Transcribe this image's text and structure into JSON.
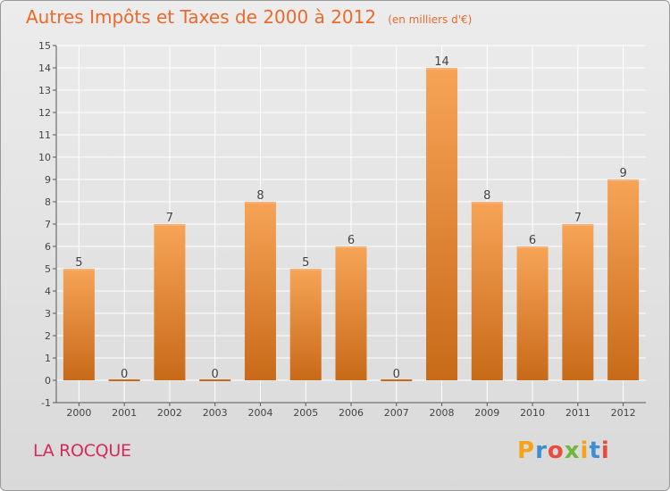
{
  "header": {
    "title": "Autres Impôts et Taxes de 2000 à 2012",
    "unit": "(en milliers d'€)"
  },
  "footer": {
    "commune": "LA ROCQUE",
    "brand_letters": [
      "P",
      "r",
      "o",
      "x",
      "i",
      "t",
      "i"
    ],
    "brand_colors": [
      "#f7a21b",
      "#3e8ed0",
      "#e94b3c",
      "#6fb83b",
      "#f7a21b",
      "#3e8ed0",
      "#e94b3c"
    ]
  },
  "colors": {
    "title": "#e96a2c",
    "commune": "#d8285e",
    "bar_top": "#f7a457",
    "bar_bottom": "#c86a18",
    "grid": "#ffffff"
  },
  "chart_data": {
    "type": "bar",
    "title": "Autres Impôts et Taxes de 2000 à 2012",
    "subtitle": "(en milliers d'€)",
    "categories": [
      "2000",
      "2001",
      "2002",
      "2003",
      "2004",
      "2005",
      "2006",
      "2007",
      "2008",
      "2009",
      "2010",
      "2011",
      "2012"
    ],
    "values": [
      5,
      0,
      7,
      0,
      8,
      5,
      6,
      0,
      14,
      8,
      6,
      7,
      9
    ],
    "ylim": [
      -1,
      15
    ],
    "yticks": [
      "-1",
      "0",
      "1",
      "2",
      "3",
      "4",
      "5",
      "6",
      "7",
      "8",
      "9",
      "10",
      "11",
      "12",
      "13",
      "14",
      "15"
    ],
    "grid": true,
    "legend": "none"
  }
}
